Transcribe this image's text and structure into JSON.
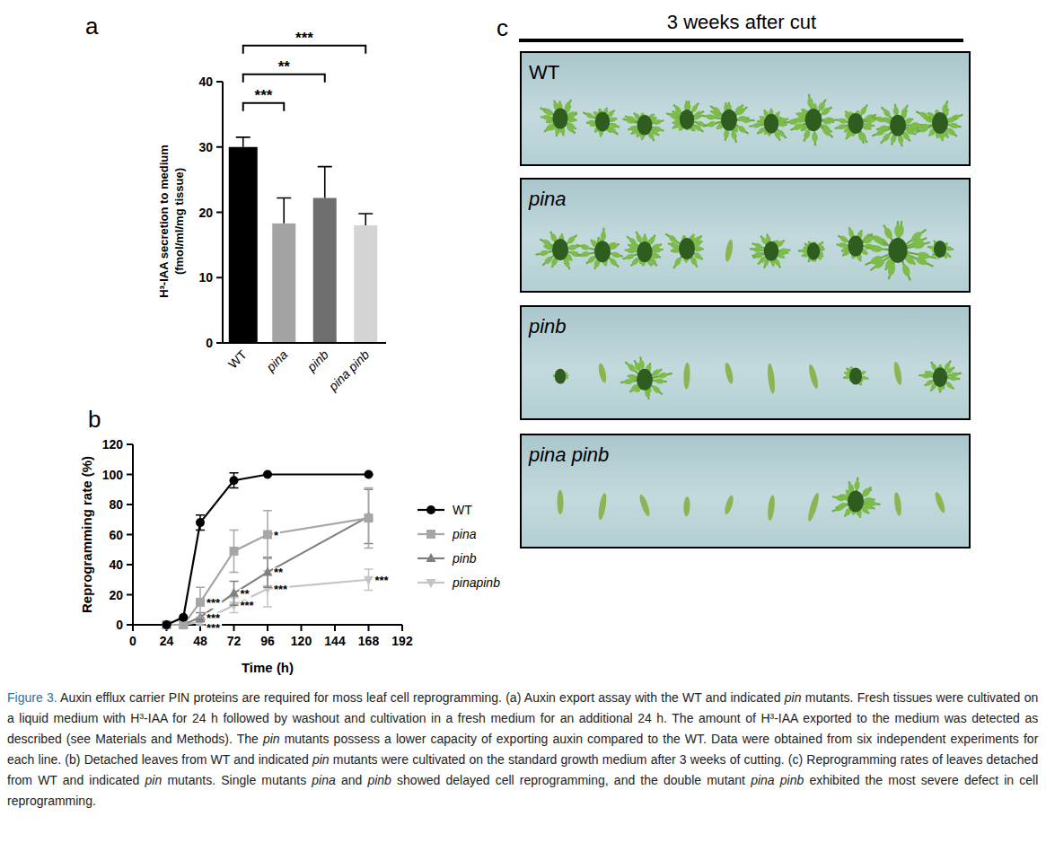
{
  "chart_data": [
    {
      "type": "bar",
      "panel_label": "a",
      "categories": [
        "WT",
        "pina",
        "pinb",
        "pina pinb"
      ],
      "values": [
        30,
        18.3,
        22.2,
        18
      ],
      "errors": [
        1.5,
        3.9,
        4.8,
        1.8
      ],
      "colors": [
        "#000000",
        "#a3a3a3",
        "#6e6e6e",
        "#d4d4d4"
      ],
      "y_label": [
        "H³-IAA secretion to medium",
        "(fmol/ml/mg tissue)"
      ],
      "ylim": [
        0,
        40
      ],
      "yticks": [
        0,
        10,
        20,
        30,
        40
      ],
      "annotations": [
        {
          "text": "***",
          "from": "WT",
          "to": "pina"
        },
        {
          "text": "**",
          "from": "WT",
          "to": "pinb"
        },
        {
          "text": "***",
          "from": "WT",
          "to": "pina pinb"
        }
      ]
    },
    {
      "type": "line",
      "panel_label": "b",
      "x": [
        24,
        36,
        48,
        72,
        96,
        168
      ],
      "x_label": "Time (h)",
      "y_label": "Reprogramming rate (%)",
      "xlim": [
        0,
        192
      ],
      "xticks": [
        0,
        24,
        48,
        72,
        96,
        120,
        144,
        168,
        192
      ],
      "ylim": [
        0,
        120
      ],
      "yticks": [
        0,
        20,
        40,
        60,
        80,
        100,
        120
      ],
      "legend": "right",
      "series": [
        {
          "name": "WT",
          "color": "#000000",
          "marker": "circle",
          "values": [
            0,
            5,
            68,
            96,
            100,
            100
          ],
          "errors": [
            0,
            0,
            5,
            5,
            0,
            0
          ],
          "significance": [
            null,
            null,
            null,
            null,
            null,
            null
          ]
        },
        {
          "name": "pina",
          "color": "#a6a6a6",
          "marker": "square",
          "values": [
            0,
            0,
            15,
            49,
            60,
            71
          ],
          "errors": [
            0,
            0,
            10,
            14,
            16,
            20
          ],
          "significance": [
            null,
            null,
            "***",
            null,
            "*",
            null
          ]
        },
        {
          "name": "pinb",
          "color": "#808080",
          "marker": "triangle",
          "values": [
            0,
            0,
            5,
            21,
            35,
            72
          ],
          "errors": [
            0,
            0,
            3,
            8,
            10,
            18
          ],
          "significance": [
            null,
            null,
            "***",
            "**",
            "**",
            null
          ]
        },
        {
          "name": "pinapinb",
          "color": "#c4c4c4",
          "marker": "triangle-down",
          "values": [
            0,
            0,
            2,
            13,
            24,
            30
          ],
          "errors": [
            0,
            0,
            2,
            5,
            12,
            7
          ],
          "significance": [
            null,
            null,
            "***",
            "***",
            "***",
            "***"
          ]
        }
      ]
    }
  ],
  "panel_c": {
    "panel_label": "c",
    "title": "3 weeks after cut",
    "images": [
      "WT",
      "pina",
      "pinb",
      "pina pinb"
    ]
  },
  "caption": {
    "label": "Figure 3.",
    "text": "Auxin efflux carrier PIN proteins are required for moss leaf cell reprogramming. (a) Auxin export assay with the WT and indicated pin mutants. Fresh tissues were cultivated on a liquid medium with H³-IAA for 24 h followed by washout and cultivation in a fresh medium for an additional 24 h. The amount of H³-IAA exported to the medium was detected as described (see Materials and Methods). The pin mutants possess a lower capacity of exporting auxin compared to the WT. Data were obtained from six independent experiments for each line. (b) Detached leaves from WT and indicated pin mutants were cultivated on the standard growth medium after 3 weeks of cutting. (c) Reprogramming rates of leaves detached from WT and indicated pin mutants. Single mutants pina and pinb showed delayed cell reprogramming, and the double mutant pina pinb exhibited the most severe defect in cell reprogramming."
  }
}
